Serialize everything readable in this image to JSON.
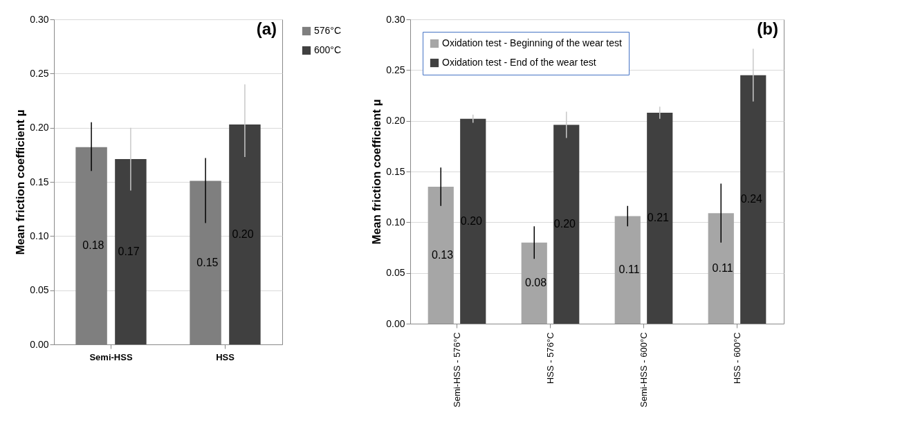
{
  "chart_data": [
    {
      "type": "bar",
      "categories": [
        "Semi-HSS",
        "HSS"
      ],
      "ylabel": "Mean friction coefficient µ",
      "annotations": [
        "(a)"
      ],
      "ylim": [
        0,
        0.3
      ],
      "yticks": [
        {
          "value": 0,
          "label": "0.00"
        },
        {
          "value": 0.05,
          "label": "0.05"
        },
        {
          "value": 0.1,
          "label": "0.10"
        },
        {
          "value": 0.15,
          "label": "0.15"
        },
        {
          "value": 0.2,
          "label": "0.20"
        },
        {
          "value": 0.25,
          "label": "0.25"
        },
        {
          "value": 0.3,
          "label": "0.30"
        }
      ],
      "grid": "y",
      "legend": "right",
      "series": [
        {
          "name": "576°C",
          "color": "#7f7f7f",
          "values": [
            0.182,
            0.151
          ],
          "errors": [
            [
              0.16,
              0.205
            ],
            [
              0.112,
              0.172
            ]
          ],
          "value_labels": [
            "0.18",
            "0.15"
          ]
        },
        {
          "name": "600°C",
          "color": "#404040",
          "values": [
            0.171,
            0.203
          ],
          "errors": [
            [
              0.142,
              0.2
            ],
            [
              0.173,
              0.24
            ]
          ],
          "value_labels": [
            "0.17",
            "0.20"
          ]
        }
      ]
    },
    {
      "type": "bar",
      "categories": [
        "Semi-HSS - 576°C",
        "HSS - 576°C",
        "Semi-HSS - 600°C",
        "HSS - 600°C"
      ],
      "ylabel": "Mean friction coefficient µ",
      "annotations": [
        "(b)"
      ],
      "ylim": [
        0,
        0.3
      ],
      "yticks": [
        {
          "value": 0,
          "label": "0.00"
        },
        {
          "value": 0.05,
          "label": "0.05"
        },
        {
          "value": 0.1,
          "label": "0.10"
        },
        {
          "value": 0.15,
          "label": "0.15"
        },
        {
          "value": 0.2,
          "label": "0.20"
        },
        {
          "value": 0.25,
          "label": "0.25"
        },
        {
          "value": 0.3,
          "label": "0.30"
        }
      ],
      "grid": "y",
      "legend": "top left",
      "series": [
        {
          "name": "Oxidation test - Beginning of the wear test",
          "color": "#a6a6a6",
          "values": [
            0.135,
            0.08,
            0.106,
            0.109
          ],
          "errors": [
            [
              0.116,
              0.154
            ],
            [
              0.064,
              0.096
            ],
            [
              0.096,
              0.116
            ],
            [
              0.08,
              0.138
            ]
          ],
          "value_labels": [
            "0.13",
            "0.08",
            "0.11",
            "0.11"
          ]
        },
        {
          "name": "Oxidation test - End of the wear test",
          "color": "#404040",
          "values": [
            0.202,
            0.196,
            0.208,
            0.245
          ],
          "errors": [
            [
              0.198,
              0.206
            ],
            [
              0.183,
              0.209
            ],
            [
              0.202,
              0.214
            ],
            [
              0.219,
              0.271
            ]
          ],
          "value_labels": [
            "0.20",
            "0.20",
            "0.21",
            "0.24"
          ]
        }
      ]
    }
  ]
}
